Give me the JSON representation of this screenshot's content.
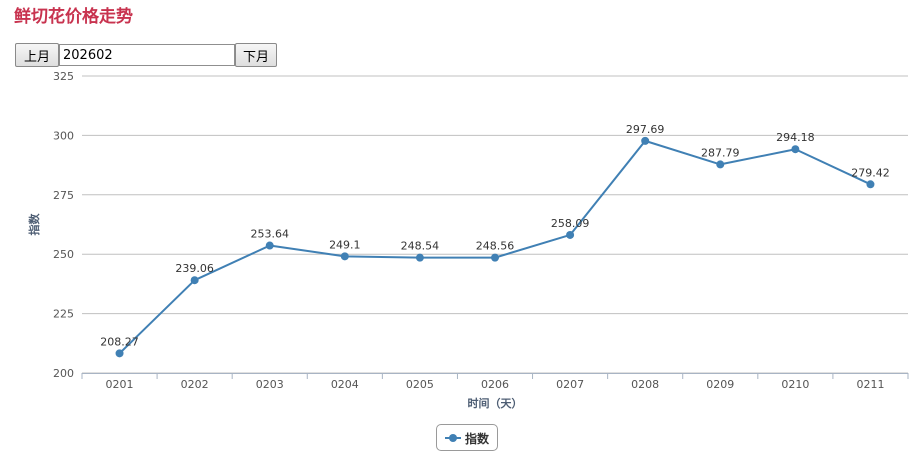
{
  "page": {
    "title": "鲜切花价格走势"
  },
  "controls": {
    "prev_label": "上月",
    "next_label": "下月",
    "month_value": "202602"
  },
  "legend": {
    "label": "指数"
  },
  "colors": {
    "title": "#c8334f",
    "series": "#4080b4",
    "grid": "#c0c0c0",
    "axis_text": "#555555",
    "axis_title": "#4d5d73"
  },
  "chart_data": {
    "type": "line",
    "title": "",
    "xlabel": "时间（天）",
    "ylabel": "指数",
    "ylim": [
      200,
      325
    ],
    "yticks": [
      200,
      225,
      250,
      275,
      300,
      325
    ],
    "grid": true,
    "legend_position": "bottom-center",
    "categories": [
      "0201",
      "0202",
      "0203",
      "0204",
      "0205",
      "0206",
      "0207",
      "0208",
      "0209",
      "0210",
      "0211"
    ],
    "series": [
      {
        "name": "指数",
        "values": [
          208.27,
          239.06,
          253.64,
          249.1,
          248.54,
          248.56,
          258.09,
          297.69,
          287.79,
          294.18,
          279.42
        ],
        "labels": [
          "208.27",
          "239.06",
          "253.64",
          "249.1",
          "248.54",
          "248.56",
          "258.09",
          "297.69",
          "287.79",
          "294.18",
          "279.42"
        ]
      }
    ]
  }
}
